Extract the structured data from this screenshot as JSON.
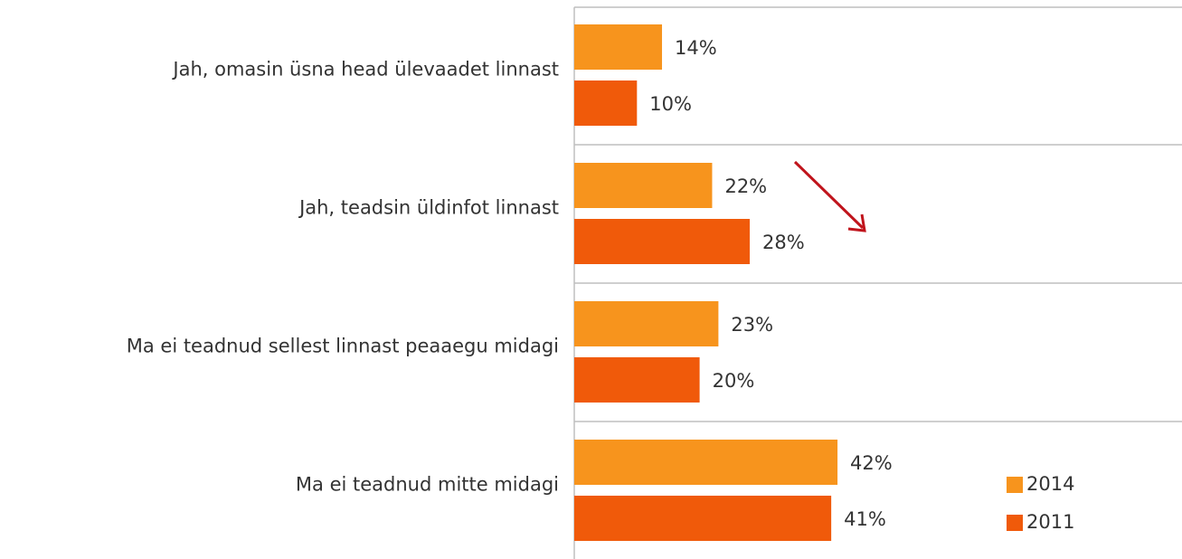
{
  "chart_data": {
    "type": "bar",
    "orientation": "horizontal",
    "categories": [
      "Jah, omasin üsna head ülevaadet linnast",
      "Jah, teadsin üldinfot linnast",
      "Ma ei teadnud sellest linnast peaaegu midagi",
      "Ma ei teadnud mitte midagi"
    ],
    "series": [
      {
        "name": "2014",
        "color": "#f7941d",
        "values": [
          14,
          22,
          23,
          42
        ],
        "value_labels": [
          "14%",
          "22%",
          "23%",
          "42%"
        ]
      },
      {
        "name": "2011",
        "color": "#f05a0a",
        "values": [
          10,
          28,
          20,
          41
        ],
        "value_labels": [
          "10%",
          "28%",
          "20%",
          "41%"
        ]
      }
    ],
    "legend": "bottom-right"
  }
}
